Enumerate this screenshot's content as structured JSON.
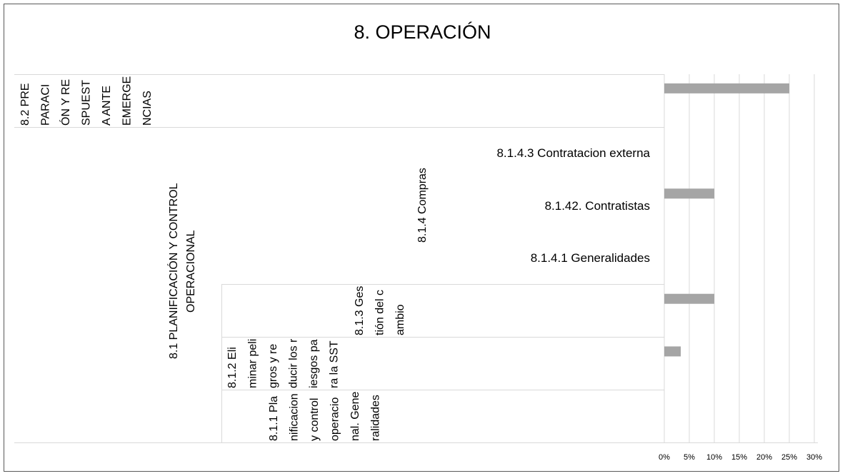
{
  "chart_data": {
    "type": "bar",
    "orientation": "horizontal",
    "title": "8. OPERACIÓN",
    "categories": [
      "8.1.1 Planificacion y control operacional. Generalidades",
      "8.1.2 Eliminar peligros y reducir los riesgos para la SST",
      "8.1.3 Gestión del cambio",
      "8.1.4.1 Generalidades",
      "8.1.42. Contratistas",
      "8.1.4.3 Contratacion externa",
      "8.2 PREPARACIÓN Y RESPUESTA ANTE EMERGENCIAS"
    ],
    "category_groups": [
      "8.1 PLANIFICACIÓN Y CONTROL OPERACIONAL",
      "8.1.4 Compras"
    ],
    "values": [
      0,
      3.3,
      10,
      0,
      10,
      0,
      25
    ],
    "color": "#a5a5a5",
    "xlim": [
      0,
      30
    ],
    "xticks": [
      {
        "value": 0,
        "label": "0%"
      },
      {
        "value": 5,
        "label": "5%"
      },
      {
        "value": 10,
        "label": "10%"
      },
      {
        "value": 15,
        "label": "15%"
      },
      {
        "value": 20,
        "label": "20%"
      },
      {
        "value": 25,
        "label": "25%"
      },
      {
        "value": 30,
        "label": "30%"
      }
    ],
    "grid": true
  }
}
